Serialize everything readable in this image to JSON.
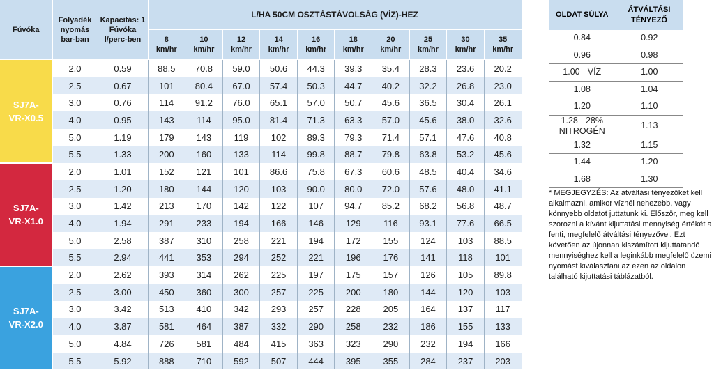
{
  "main": {
    "headers": {
      "nozzle": "Fúvóka",
      "pressure": "Folyadék nyomás bar-ban",
      "capacity": "Kapacitás: 1 Fúvóka l/perc-ben",
      "group": "L/HA 50CM OSZTÁSTÁVOLSÁG (VÍZ)-HEZ",
      "speeds": [
        {
          "value": "8",
          "unit": "km/hr"
        },
        {
          "value": "10",
          "unit": "km/hr"
        },
        {
          "value": "12",
          "unit": "km/hr"
        },
        {
          "value": "14",
          "unit": "km/hr"
        },
        {
          "value": "16",
          "unit": "km/hr"
        },
        {
          "value": "18",
          "unit": "km/hr"
        },
        {
          "value": "20",
          "unit": "km/hr"
        },
        {
          "value": "25",
          "unit": "km/hr"
        },
        {
          "value": "30",
          "unit": "km/hr"
        },
        {
          "value": "35",
          "unit": "km/hr"
        }
      ]
    },
    "groups": [
      {
        "nozzle": [
          "SJ7A-",
          "VR-X0.5"
        ],
        "rows": [
          [
            "2.0",
            "0.59",
            "88.5",
            "70.8",
            "59.0",
            "50.6",
            "44.3",
            "39.3",
            "35.4",
            "28.3",
            "23.6",
            "20.2"
          ],
          [
            "2.5",
            "0.67",
            "101",
            "80.4",
            "67.0",
            "57.4",
            "50.3",
            "44.7",
            "40.2",
            "32.2",
            "26.8",
            "23.0"
          ],
          [
            "3.0",
            "0.76",
            "114",
            "91.2",
            "76.0",
            "65.1",
            "57.0",
            "50.7",
            "45.6",
            "36.5",
            "30.4",
            "26.1"
          ],
          [
            "4.0",
            "0.95",
            "143",
            "114",
            "95.0",
            "81.4",
            "71.3",
            "63.3",
            "57.0",
            "45.6",
            "38.0",
            "32.6"
          ],
          [
            "5.0",
            "1.19",
            "179",
            "143",
            "119",
            "102",
            "89.3",
            "79.3",
            "71.4",
            "57.1",
            "47.6",
            "40.8"
          ],
          [
            "5.5",
            "1.33",
            "200",
            "160",
            "133",
            "114",
            "99.8",
            "88.7",
            "79.8",
            "63.8",
            "53.2",
            "45.6"
          ]
        ]
      },
      {
        "nozzle": [
          "SJ7A-",
          "VR-X1.0"
        ],
        "rows": [
          [
            "2.0",
            "1.01",
            "152",
            "121",
            "101",
            "86.6",
            "75.8",
            "67.3",
            "60.6",
            "48.5",
            "40.4",
            "34.6"
          ],
          [
            "2.5",
            "1.20",
            "180",
            "144",
            "120",
            "103",
            "90.0",
            "80.0",
            "72.0",
            "57.6",
            "48.0",
            "41.1"
          ],
          [
            "3.0",
            "1.42",
            "213",
            "170",
            "142",
            "122",
            "107",
            "94.7",
            "85.2",
            "68.2",
            "56.8",
            "48.7"
          ],
          [
            "4.0",
            "1.94",
            "291",
            "233",
            "194",
            "166",
            "146",
            "129",
            "116",
            "93.1",
            "77.6",
            "66.5"
          ],
          [
            "5.0",
            "2.58",
            "387",
            "310",
            "258",
            "221",
            "194",
            "172",
            "155",
            "124",
            "103",
            "88.5"
          ],
          [
            "5.5",
            "2.94",
            "441",
            "353",
            "294",
            "252",
            "221",
            "196",
            "176",
            "141",
            "118",
            "101"
          ]
        ]
      },
      {
        "nozzle": [
          "SJ7A-",
          "VR-X2.0"
        ],
        "rows": [
          [
            "2.0",
            "2.62",
            "393",
            "314",
            "262",
            "225",
            "197",
            "175",
            "157",
            "126",
            "105",
            "89.8"
          ],
          [
            "2.5",
            "3.00",
            "450",
            "360",
            "300",
            "257",
            "225",
            "200",
            "180",
            "144",
            "120",
            "103"
          ],
          [
            "3.0",
            "3.42",
            "513",
            "410",
            "342",
            "293",
            "257",
            "228",
            "205",
            "164",
            "137",
            "117"
          ],
          [
            "4.0",
            "3.87",
            "581",
            "464",
            "387",
            "332",
            "290",
            "258",
            "232",
            "186",
            "155",
            "133"
          ],
          [
            "5.0",
            "4.84",
            "726",
            "581",
            "484",
            "415",
            "363",
            "323",
            "290",
            "232",
            "194",
            "166"
          ],
          [
            "5.5",
            "5.92",
            "888",
            "710",
            "592",
            "507",
            "444",
            "395",
            "355",
            "284",
            "237",
            "203"
          ]
        ]
      }
    ]
  },
  "side": {
    "headers": [
      "OLDAT SÚLYA",
      "ÁTVÁLTÁSI TÉNYEZŐ"
    ],
    "rows": [
      [
        "0.84",
        "0.92"
      ],
      [
        "0.96",
        "0.98"
      ],
      [
        "1.00 - VÍZ",
        "1.00"
      ],
      [
        "1.08",
        "1.04"
      ],
      [
        "1.20",
        "1.10"
      ],
      [
        "1.28 - 28% NITROGÉN",
        "1.13"
      ],
      [
        "1.32",
        "1.15"
      ],
      [
        "1.44",
        "1.20"
      ],
      [
        "1.68",
        "1.30"
      ]
    ],
    "note": "* MEGJEGYZÉS: Az átváltási tényezőket kell alkalmazni, amikor víznél nehezebb, vagy könnyebb oldatot juttatunk ki. Először, meg kell szorozni a kívánt kijuttatási mennyiség értékét a fenti, megfelelő átváltási tényezővel. Ezt követően az újonnan kiszámított kijuttatandó mennyiséghez kell a leginkább megfelelő üzemi nyomást kiválasztani az ezen az oldalon található kijuttatási táblázatból."
  }
}
